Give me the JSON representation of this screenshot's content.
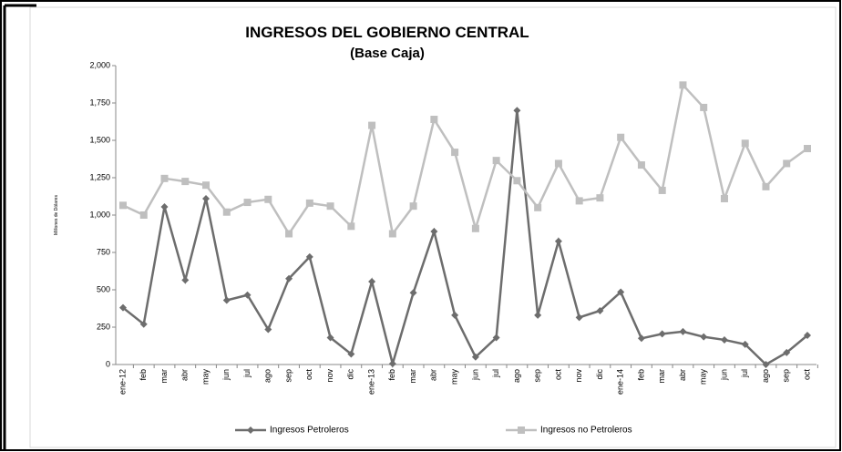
{
  "chart_data": {
    "type": "line",
    "title": "INGRESOS DEL GOBIERNO CENTRAL",
    "subtitle": "(Base Caja)",
    "y_label": "Millones de Dólares",
    "categories": [
      "ene-12",
      "feb",
      "mar",
      "abr",
      "may",
      "jun",
      "jul",
      "ago",
      "sep",
      "oct",
      "nov",
      "dic",
      "ene-13",
      "feb",
      "mar",
      "abr",
      "may",
      "jun",
      "jul",
      "ago",
      "sep",
      "oct",
      "nov",
      "dic",
      "ene-14",
      "feb",
      "mar",
      "abr",
      "may",
      "jun",
      "jul",
      "ago",
      "sep",
      "oct"
    ],
    "series": [
      {
        "name": "Ingresos Petroleros",
        "color": "#6d6d6d",
        "marker": "diamond",
        "values": [
          380,
          270,
          1055,
          565,
          1110,
          430,
          465,
          235,
          575,
          720,
          180,
          70,
          555,
          5,
          480,
          890,
          330,
          50,
          180,
          1700,
          330,
          825,
          315,
          360,
          485,
          175,
          205,
          220,
          185,
          165,
          135,
          0,
          80,
          195
        ]
      },
      {
        "name": "Ingresos no Petroleros",
        "color": "#bfbfbf",
        "marker": "square",
        "values": [
          1065,
          1000,
          1245,
          1225,
          1200,
          1020,
          1085,
          1105,
          875,
          1080,
          1060,
          925,
          1600,
          875,
          1060,
          1640,
          1420,
          910,
          1365,
          1230,
          1050,
          1345,
          1095,
          1115,
          1520,
          1335,
          1165,
          1870,
          1720,
          1110,
          1480,
          1190,
          1345,
          1445
        ]
      }
    ],
    "ylim": [
      0,
      2000
    ],
    "yticks": [
      0,
      250,
      500,
      750,
      {
        "value": 1000,
        "label": "1,000"
      },
      {
        "value": 1250,
        "label": "1,250"
      },
      {
        "value": 1500,
        "label": "1,500"
      },
      {
        "value": 1750,
        "label": "1,750"
      },
      {
        "value": 2000,
        "label": "2,000"
      }
    ],
    "grid": false,
    "legend": "bottom"
  }
}
